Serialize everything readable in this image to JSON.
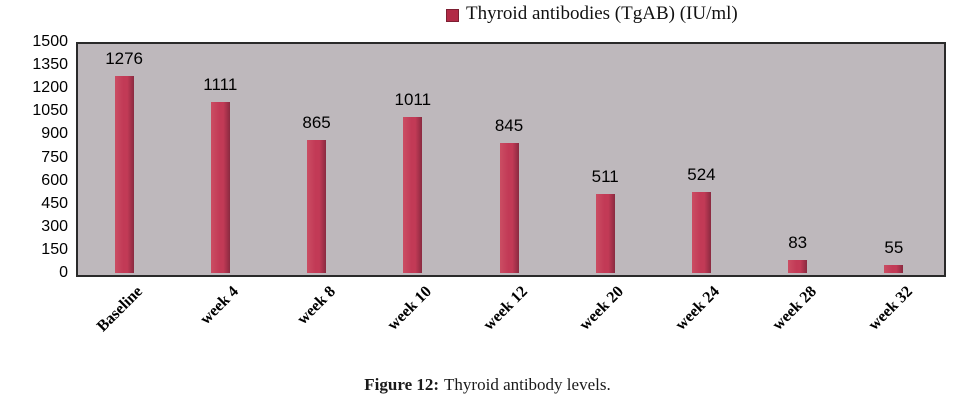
{
  "figure": {
    "legend": {
      "marker_color": "#b22a46",
      "label": "Thyroid antibodies (TgAB) (IU/ml)"
    },
    "caption": {
      "label": "Figure 12:",
      "text": "Thyroid antibody levels."
    }
  },
  "chart_data": {
    "type": "bar",
    "title": "",
    "categories": [
      "Baseline",
      "week 4",
      "week 8",
      "week 10",
      "week 12",
      "week 20",
      "week 24",
      "week 28",
      "week 32"
    ],
    "values": [
      1276,
      1111,
      865,
      1011,
      845,
      511,
      524,
      83,
      55
    ],
    "series_name": "Thyroid antibodies (TgAB) (IU/ml)",
    "xlabel": "",
    "ylabel": "",
    "ylim": [
      0,
      1500
    ],
    "yticks": [
      1500,
      1350,
      1200,
      1050,
      900,
      750,
      600,
      450,
      300,
      150,
      0
    ],
    "grid": false,
    "legend_position": "top-center",
    "data_labels": true,
    "colors": {
      "bar": "#c23a56",
      "bar_light": "#cb4d63",
      "bar_edge": "#8a2a40",
      "plot_background": "#beb8bc",
      "plot_border": "#2a2a2a",
      "text": "#000000"
    }
  }
}
